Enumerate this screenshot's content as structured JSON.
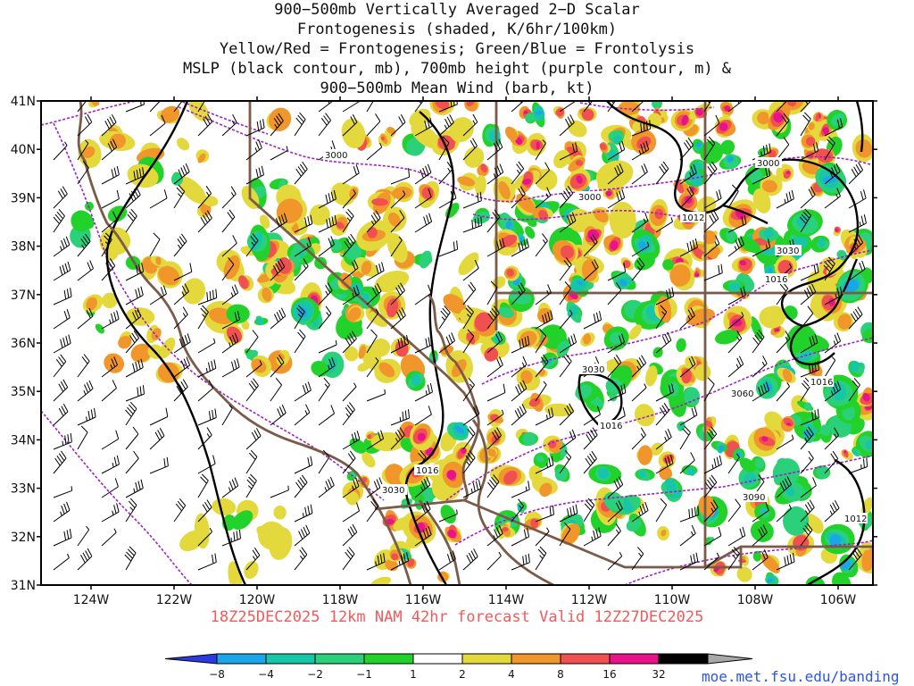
{
  "title_lines": [
    "900−500mb Vertically Averaged 2−D Scalar",
    "Frontogenesis (shaded, K/6hr/100km)",
    "Yellow/Red = Frontogenesis;  Green/Blue = Frontolysis",
    "MSLP (black contour, mb), 700mb height (purple contour, m) &",
    "900−500mb Mean Wind (barb, kt)"
  ],
  "valid_line": "18Z25DEC2025 12km NAM 42hr forecast Valid 12Z27DEC2025",
  "credit": "moe.met.fsu.edu/banding",
  "axes": {
    "lat_labels": [
      "41N",
      "40N",
      "39N",
      "38N",
      "37N",
      "36N",
      "35N",
      "34N",
      "33N",
      "32N",
      "31N"
    ],
    "lon_labels": [
      "124W",
      "122W",
      "120W",
      "118W",
      "116W",
      "114W",
      "112W",
      "110W",
      "108W",
      "106W"
    ],
    "lat_range": [
      31,
      41
    ],
    "lon_range": [
      -125,
      -105
    ]
  },
  "colorbar": {
    "labels": [
      "−8",
      "−4",
      "−2",
      "−1",
      "1",
      "2",
      "4",
      "8",
      "16",
      "32"
    ],
    "colors": [
      "#2a3be0",
      "#1aa6e8",
      "#17c6a8",
      "#2ad07a",
      "#22d22a",
      "#ffffff",
      "#e3d83c",
      "#f0962a",
      "#f05050",
      "#e8128a",
      "#000000",
      "#a8a8a8"
    ]
  },
  "contour_labels": {
    "height": [
      "3000",
      "3000",
      "3000",
      "3030",
      "3030",
      "3060",
      "3090",
      "3030"
    ],
    "mslp": [
      "1012",
      "1016",
      "1016",
      "1016",
      "1012",
      "1016"
    ]
  },
  "colors": {
    "state_border": "#7a5a48",
    "mslp": "#000000",
    "height": "#a020c8",
    "barb": "#000000"
  }
}
